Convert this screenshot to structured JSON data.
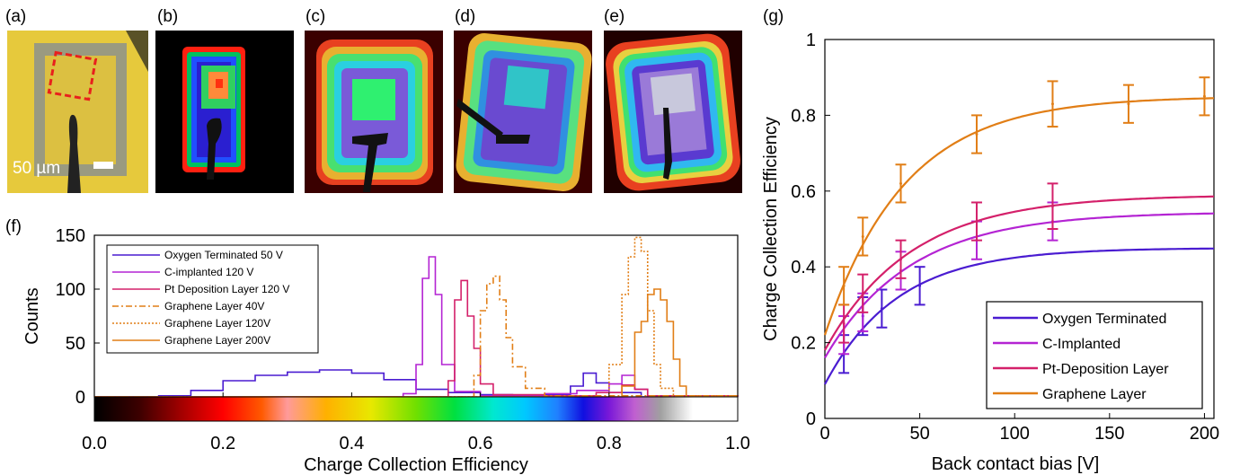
{
  "panel_labels": [
    "(a)",
    "(b)",
    "(c)",
    "(d)",
    "(e)",
    "(f)",
    "(g)"
  ],
  "scale_bar_label": "50 µm",
  "images": [
    {
      "panel": "b",
      "center_color": "#ff3010",
      "inner_color": "#ff8a3a"
    },
    {
      "panel": "c",
      "center_color": "#2ff070"
    },
    {
      "panel": "d",
      "center_color": "#30c4c8"
    },
    {
      "panel": "e",
      "center_color": "#c8c8dc"
    }
  ],
  "colors": {
    "oxygen": "#4a1cd1",
    "c_implanted": "#b424d3",
    "pt": "#d4206a",
    "graphene": "#e17e16",
    "image_a_bg": "#e6c93c",
    "image_a_frame": "#9a9a80",
    "roi_box": "#e8201c"
  },
  "chart_data": [
    {
      "id": "f",
      "type": "line",
      "xlabel": "Charge Collection Efficiency",
      "ylabel": "Counts",
      "xlim": [
        0.0,
        1.0
      ],
      "ylim": [
        0,
        150
      ],
      "xticks": [
        "0.0",
        "0.2",
        "0.4",
        "0.6",
        "0.8",
        "1.0"
      ],
      "yticks": [
        "0",
        "50",
        "100",
        "150"
      ],
      "legend_position": "top-left",
      "series": [
        {
          "name": "Oxygen Terminated 50 V",
          "color": "#4a1cd1",
          "style": "solid",
          "x": [
            0.0,
            0.1,
            0.15,
            0.2,
            0.25,
            0.3,
            0.35,
            0.4,
            0.45,
            0.5,
            0.55,
            0.6,
            0.65,
            0.7,
            0.74,
            0.76,
            0.78,
            0.8,
            0.85,
            1.0
          ],
          "y": [
            0,
            1,
            6,
            15,
            20,
            23,
            25,
            22,
            16,
            7,
            4,
            2,
            1,
            2,
            10,
            22,
            13,
            4,
            0,
            0
          ]
        },
        {
          "name": "C-implanted 120 V",
          "color": "#b424d3",
          "style": "solid",
          "x": [
            0.0,
            0.45,
            0.48,
            0.5,
            0.51,
            0.52,
            0.53,
            0.54,
            0.56,
            0.6,
            0.7,
            0.75,
            0.8,
            0.82,
            0.84,
            0.86,
            1.0
          ],
          "y": [
            0,
            0,
            3,
            30,
            110,
            130,
            95,
            30,
            5,
            1,
            3,
            6,
            12,
            20,
            7,
            1,
            0
          ]
        },
        {
          "name": "Pt Deposition Layer 120 V",
          "color": "#d4206a",
          "style": "solid",
          "x": [
            0.0,
            0.53,
            0.55,
            0.56,
            0.57,
            0.58,
            0.59,
            0.6,
            0.62,
            0.7,
            0.78,
            0.82,
            0.84,
            0.86,
            1.0
          ],
          "y": [
            0,
            0,
            15,
            90,
            108,
            75,
            45,
            12,
            2,
            1,
            4,
            11,
            7,
            1,
            0
          ]
        },
        {
          "name": "Graphene Layer 40V",
          "color": "#e17e16",
          "style": "dashdot",
          "x": [
            0.0,
            0.57,
            0.59,
            0.6,
            0.61,
            0.62,
            0.63,
            0.64,
            0.65,
            0.67,
            0.7,
            1.0
          ],
          "y": [
            0,
            0,
            20,
            80,
            105,
            112,
            90,
            55,
            28,
            8,
            1,
            0
          ]
        },
        {
          "name": "Graphene Layer 120V",
          "color": "#e17e16",
          "style": "dotted",
          "x": [
            0.0,
            0.76,
            0.8,
            0.82,
            0.83,
            0.84,
            0.85,
            0.86,
            0.87,
            0.88,
            0.9,
            1.0
          ],
          "y": [
            0,
            0,
            30,
            95,
            130,
            148,
            135,
            80,
            30,
            8,
            1,
            0
          ]
        },
        {
          "name": "Graphene Layer 200V",
          "color": "#e17e16",
          "style": "solid",
          "x": [
            0.0,
            0.8,
            0.82,
            0.84,
            0.85,
            0.86,
            0.87,
            0.88,
            0.89,
            0.9,
            0.91,
            0.92,
            1.0
          ],
          "y": [
            0,
            0,
            10,
            60,
            70,
            95,
            100,
            90,
            70,
            35,
            10,
            0,
            0
          ]
        }
      ]
    },
    {
      "id": "g",
      "type": "line",
      "xlabel": "Back contact bias [V]",
      "ylabel": "Charge Collection Efficiency",
      "xlim": [
        0,
        205
      ],
      "ylim": [
        0,
        1
      ],
      "xticks": [
        "0",
        "50",
        "100",
        "150",
        "200"
      ],
      "yticks": [
        "0",
        "0.2",
        "0.4",
        "0.6",
        "0.8",
        "1"
      ],
      "legend_position": "bottom-right",
      "series": [
        {
          "name": "Oxygen Terminated",
          "color": "#4a1cd1",
          "points_x": [
            10,
            20,
            30,
            50
          ],
          "points_y": [
            0.17,
            0.27,
            0.29,
            0.35
          ],
          "errors": [
            0.05,
            0.05,
            0.05,
            0.05
          ],
          "fit": {
            "a": 0.45,
            "b": 0.36,
            "tau": 38
          }
        },
        {
          "name": "C-Implanted",
          "color": "#b424d3",
          "points_x": [
            10,
            20,
            40,
            80,
            120
          ],
          "points_y": [
            0.22,
            0.28,
            0.39,
            0.47,
            0.52
          ],
          "errors": [
            0.05,
            0.05,
            0.05,
            0.05,
            0.05
          ],
          "fit": {
            "a": 0.545,
            "b": 0.385,
            "tau": 45
          }
        },
        {
          "name": "Pt-Deposition Layer",
          "color": "#d4206a",
          "points_x": [
            10,
            20,
            40,
            80,
            120
          ],
          "points_y": [
            0.25,
            0.33,
            0.42,
            0.52,
            0.56
          ],
          "errors": [
            0.05,
            0.05,
            0.05,
            0.05,
            0.06
          ],
          "fit": {
            "a": 0.59,
            "b": 0.41,
            "tau": 45
          }
        },
        {
          "name": "Graphene Layer",
          "color": "#e17e16",
          "points_x": [
            10,
            20,
            40,
            80,
            120,
            160,
            200
          ],
          "points_y": [
            0.35,
            0.48,
            0.62,
            0.75,
            0.83,
            0.83,
            0.85
          ],
          "errors": [
            0.05,
            0.05,
            0.05,
            0.05,
            0.06,
            0.05,
            0.05
          ],
          "fit": {
            "a": 0.85,
            "b": 0.63,
            "tau": 42
          }
        }
      ]
    }
  ]
}
